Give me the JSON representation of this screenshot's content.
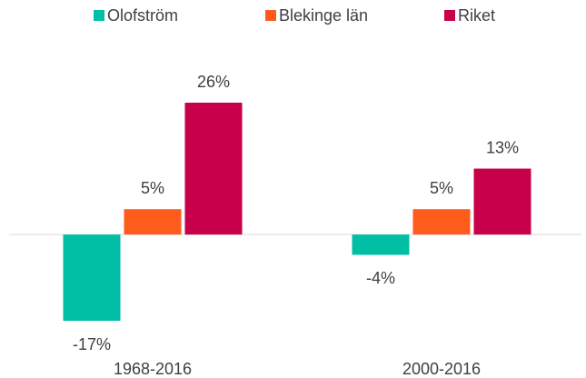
{
  "chart_data": {
    "type": "bar",
    "categories": [
      "1968-2016",
      "2000-2016"
    ],
    "series": [
      {
        "name": "Olofström",
        "color": "#00bfa5",
        "values": [
          -17,
          -4
        ],
        "value_labels": [
          "-17%",
          "-4%"
        ]
      },
      {
        "name": "Blekinge län",
        "color": "#ff5b1c",
        "values": [
          5,
          5
        ],
        "value_labels": [
          "5%",
          "5%"
        ]
      },
      {
        "name": "Riket",
        "color": "#c8004b",
        "values": [
          26,
          13
        ],
        "value_labels": [
          "26%",
          "13%"
        ]
      }
    ],
    "legend": "top"
  }
}
